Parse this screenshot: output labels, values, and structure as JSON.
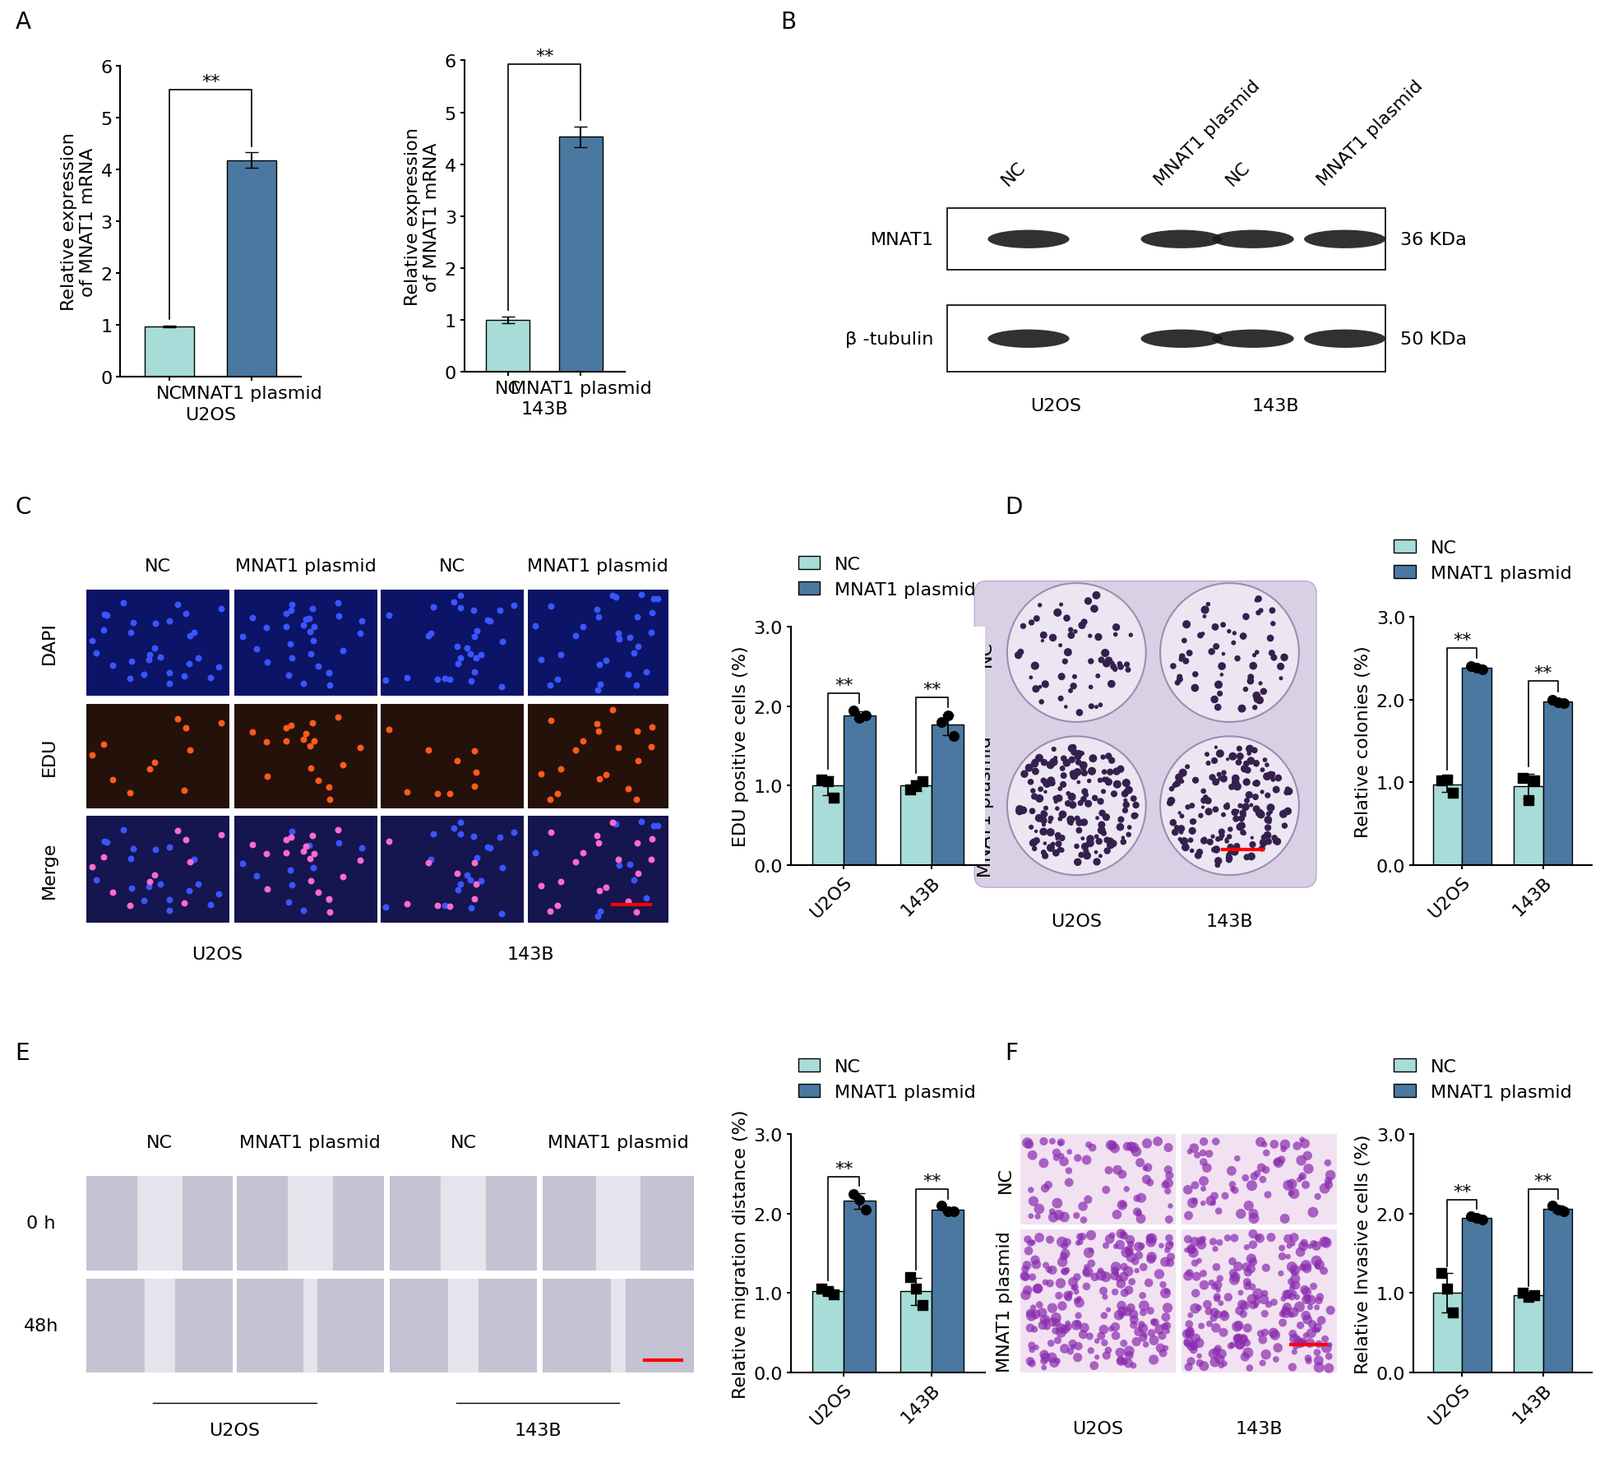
{
  "panel_labels": [
    "A",
    "B",
    "C",
    "D",
    "E",
    "F"
  ],
  "chart_data": [
    {
      "type": "bar",
      "xlabel": "U2OS",
      "ylabel": "Relative expression\nof MNAT1 mRNA",
      "categories": [
        "NC",
        "MNAT1 plasmid"
      ],
      "values": [
        0.97,
        4.18
      ],
      "errors": [
        0.02,
        0.15
      ],
      "colors": [
        "#a8dcd8",
        "#4a78a0"
      ],
      "ylim": [
        0,
        6
      ],
      "yticks": [
        0,
        1,
        2,
        3,
        4,
        5,
        6
      ],
      "significance": "**"
    },
    {
      "type": "bar",
      "xlabel": "143B",
      "ylabel": "Relative expression\nof MNAT1 mRNA",
      "categories": [
        "NC",
        "MNAT1 plasmid"
      ],
      "values": [
        1.0,
        4.53
      ],
      "errors": [
        0.07,
        0.2
      ],
      "colors": [
        "#a8dcd8",
        "#4a78a0"
      ],
      "ylim": [
        0,
        6
      ],
      "yticks": [
        0,
        1,
        2,
        3,
        4,
        5,
        6
      ],
      "significance": "**"
    },
    {
      "type": "bar",
      "ylabel": "EDU positive cells (%)",
      "categories": [
        "U2OS",
        "143B"
      ],
      "series": [
        {
          "name": "NC",
          "color": "#a8dcd8",
          "marker": "square",
          "values": [
            1.0,
            1.0
          ],
          "errors": [
            0.12,
            0.07
          ],
          "points": [
            [
              1.08,
              1.05,
              0.85
            ],
            [
              0.95,
              1.0,
              1.05
            ]
          ]
        },
        {
          "name": "MNAT1 plasmid",
          "color": "#4a78a0",
          "marker": "circle",
          "values": [
            1.89,
            1.77
          ],
          "errors": [
            0.05,
            0.13
          ],
          "points": [
            [
              1.95,
              1.85,
              1.88
            ],
            [
              1.8,
              1.88,
              1.63
            ]
          ]
        }
      ],
      "ylim": [
        0,
        3
      ],
      "yticks": [
        {
          "value": 0,
          "label": "0.0"
        },
        {
          "value": 1,
          "label": "1.0"
        },
        {
          "value": 2,
          "label": "2.0"
        },
        {
          "value": 3,
          "label": "3.0"
        }
      ],
      "legend": "upper left",
      "significance": [
        "**",
        "**"
      ]
    },
    {
      "type": "bar",
      "ylabel": "Relative colonies (%)",
      "categories": [
        "U2OS",
        "143B"
      ],
      "series": [
        {
          "name": "NC",
          "color": "#a8dcd8",
          "marker": "square",
          "values": [
            0.97,
            0.95
          ],
          "errors": [
            0.09,
            0.15
          ],
          "points": [
            [
              1.02,
              1.03,
              0.87
            ],
            [
              1.05,
              0.78,
              1.02
            ]
          ]
        },
        {
          "name": "MNAT1 plasmid",
          "color": "#4a78a0",
          "marker": "circle",
          "values": [
            2.38,
            1.98
          ],
          "errors": [
            0.03,
            0.03
          ],
          "points": [
            [
              2.4,
              2.38,
              2.36
            ],
            [
              2.0,
              1.97,
              1.96
            ]
          ]
        }
      ],
      "ylim": [
        0,
        3
      ],
      "yticks": [
        {
          "value": 0,
          "label": "0.0"
        },
        {
          "value": 1,
          "label": "1.0"
        },
        {
          "value": 2,
          "label": "2.0"
        },
        {
          "value": 3,
          "label": "3.0"
        }
      ],
      "legend": "upper left",
      "significance": [
        "**",
        "**"
      ]
    },
    {
      "type": "bar",
      "ylabel": "Relative migration distance (%)",
      "categories": [
        "U2OS",
        "143B"
      ],
      "series": [
        {
          "name": "NC",
          "color": "#a8dcd8",
          "marker": "square",
          "values": [
            1.02,
            1.02
          ],
          "errors": [
            0.05,
            0.17
          ],
          "points": [
            [
              1.05,
              1.02,
              0.98
            ],
            [
              1.2,
              1.05,
              0.85
            ]
          ]
        },
        {
          "name": "MNAT1 plasmid",
          "color": "#4a78a0",
          "marker": "circle",
          "values": [
            2.16,
            2.05
          ],
          "errors": [
            0.1,
            0.03
          ],
          "points": [
            [
              2.25,
              2.18,
              2.05
            ],
            [
              2.1,
              2.03,
              2.03
            ]
          ]
        }
      ],
      "ylim": [
        0,
        3
      ],
      "yticks": [
        {
          "value": 0,
          "label": "0.0"
        },
        {
          "value": 1,
          "label": "1.0"
        },
        {
          "value": 2,
          "label": "2.0"
        },
        {
          "value": 3,
          "label": "3.0"
        }
      ],
      "legend": "upper left",
      "significance": [
        "**",
        "**"
      ]
    },
    {
      "type": "bar",
      "ylabel": "Relative Invasive cells (%)",
      "categories": [
        "U2OS",
        "143B"
      ],
      "series": [
        {
          "name": "NC",
          "color": "#a8dcd8",
          "marker": "square",
          "values": [
            1.0,
            0.97
          ],
          "errors": [
            0.25,
            0.03
          ],
          "points": [
            [
              1.25,
              1.05,
              0.75
            ],
            [
              1.0,
              0.95,
              0.97
            ]
          ]
        },
        {
          "name": "MNAT1 plasmid",
          "color": "#4a78a0",
          "marker": "circle",
          "values": [
            1.95,
            2.06
          ],
          "errors": [
            0.02,
            0.04
          ],
          "points": [
            [
              1.97,
              1.95,
              1.93
            ],
            [
              2.1,
              2.05,
              2.03
            ]
          ]
        }
      ],
      "ylim": [
        0,
        3
      ],
      "yticks": [
        {
          "value": 0,
          "label": "0.0"
        },
        {
          "value": 1,
          "label": "1.0"
        },
        {
          "value": 2,
          "label": "2.0"
        },
        {
          "value": 3,
          "label": "3.0"
        }
      ],
      "legend": "upper left",
      "significance": [
        "**",
        "**"
      ]
    }
  ],
  "blot": {
    "lanes": [
      "NC",
      "MNAT1 plasmid",
      "NC",
      "MNAT1 plasmid"
    ],
    "rows": [
      {
        "label": "MNAT1",
        "size": "36 KDa"
      },
      {
        "label": "β -tubulin",
        "size": "50 KDa"
      }
    ],
    "groups": [
      "U2OS",
      "143B"
    ]
  },
  "edu_images": {
    "columns": [
      "NC",
      "MNAT1 plasmid",
      "NC",
      "MNAT1 plasmid"
    ],
    "rows": [
      "DAPI",
      "EDU",
      "Merge"
    ],
    "groups": [
      "U2OS",
      "143B"
    ]
  },
  "colony_images": {
    "rows": [
      "NC",
      "MNAT1 plasmid"
    ],
    "columns": [
      "U2OS",
      "143B"
    ]
  },
  "wound_images": {
    "columns": [
      "NC",
      "MNAT1 plasmid",
      "NC",
      "MNAT1 plasmid"
    ],
    "rows": [
      "0 h",
      "48h"
    ],
    "groups": [
      "U2OS",
      "143B"
    ]
  },
  "invasion_images": {
    "rows": [
      "NC",
      "MNAT1 plasmid"
    ],
    "columns": [
      "U2OS",
      "143B"
    ]
  }
}
